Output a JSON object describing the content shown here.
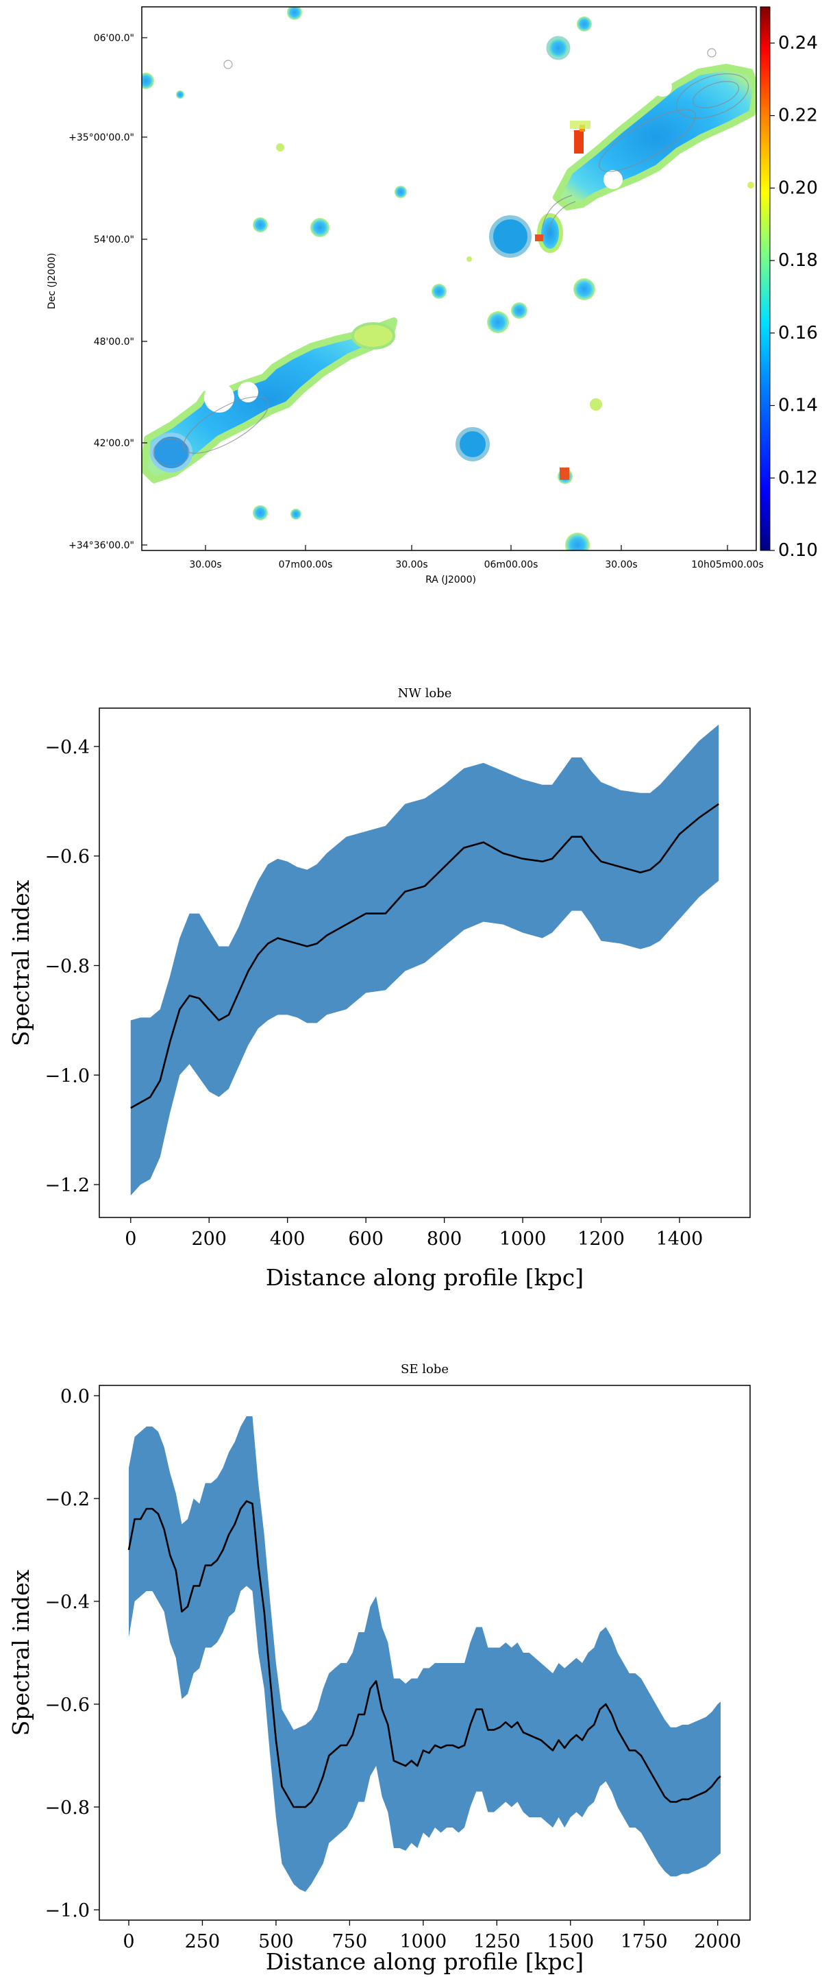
{
  "chart_data": [
    {
      "type": "heatmap",
      "xlabel": "RA (J2000)",
      "ylabel": "Dec (J2000)",
      "x_ticks": [
        "30.00s",
        "07m00.00s",
        "30.00s",
        "06m00.00s",
        "30.00s",
        "10h05m00.00s"
      ],
      "y_ticks": [
        "06'00.0\"",
        "+35°00'00.0\"",
        "54'00.0\"",
        "48'00.0\"",
        "42'00.0\"",
        "+34°36'00.0\""
      ],
      "colorbar": {
        "ticks": [
          "0.24",
          "0.22",
          "0.20",
          "0.18",
          "0.16",
          "0.14",
          "0.12",
          "0.10"
        ],
        "range": [
          0.1,
          0.25
        ],
        "colors": [
          "#00007f",
          "#0000ff",
          "#0080ff",
          "#00e0ff",
          "#80ff80",
          "#ffff00",
          "#ff8000",
          "#ff0000",
          "#7f0000"
        ]
      }
    },
    {
      "type": "area",
      "title": "NW lobe",
      "xlabel": "Distance along profile [kpc]",
      "ylabel": "Spectral index",
      "xlim": [
        -80,
        1580
      ],
      "ylim": [
        -1.26,
        -0.33
      ],
      "x_ticks": [
        "0",
        "200",
        "400",
        "600",
        "800",
        "1000",
        "1200",
        "1400"
      ],
      "y_ticks": [
        "−0.4",
        "−0.6",
        "−0.8",
        "−1.0",
        "−1.2"
      ],
      "series": [
        {
          "name": "mean",
          "x": [
            0,
            25,
            50,
            75,
            100,
            125,
            150,
            175,
            200,
            225,
            250,
            275,
            300,
            325,
            350,
            375,
            400,
            425,
            450,
            475,
            500,
            550,
            600,
            650,
            700,
            750,
            800,
            850,
            900,
            950,
            1000,
            1050,
            1075,
            1100,
            1125,
            1150,
            1175,
            1200,
            1250,
            1300,
            1325,
            1350,
            1400,
            1450,
            1500
          ],
          "y": [
            -1.06,
            -1.05,
            -1.04,
            -1.01,
            -0.94,
            -0.88,
            -0.855,
            -0.86,
            -0.88,
            -0.9,
            -0.89,
            -0.85,
            -0.81,
            -0.78,
            -0.76,
            -0.75,
            -0.755,
            -0.76,
            -0.765,
            -0.76,
            -0.745,
            -0.725,
            -0.705,
            -0.705,
            -0.665,
            -0.655,
            -0.62,
            -0.585,
            -0.575,
            -0.595,
            -0.605,
            -0.61,
            -0.605,
            -0.585,
            -0.565,
            -0.565,
            -0.59,
            -0.61,
            -0.62,
            -0.63,
            -0.625,
            -0.61,
            -0.56,
            -0.53,
            -0.505
          ]
        },
        {
          "name": "upper",
          "x": [
            0,
            25,
            50,
            75,
            100,
            125,
            150,
            175,
            200,
            225,
            250,
            275,
            300,
            325,
            350,
            375,
            400,
            425,
            450,
            475,
            500,
            550,
            600,
            650,
            700,
            750,
            800,
            850,
            900,
            950,
            1000,
            1050,
            1075,
            1100,
            1125,
            1150,
            1175,
            1200,
            1250,
            1300,
            1325,
            1350,
            1400,
            1450,
            1500
          ],
          "y": [
            -0.9,
            -0.895,
            -0.895,
            -0.88,
            -0.82,
            -0.75,
            -0.705,
            -0.705,
            -0.735,
            -0.765,
            -0.765,
            -0.73,
            -0.685,
            -0.645,
            -0.615,
            -0.605,
            -0.61,
            -0.62,
            -0.625,
            -0.615,
            -0.595,
            -0.565,
            -0.555,
            -0.545,
            -0.505,
            -0.495,
            -0.47,
            -0.44,
            -0.43,
            -0.445,
            -0.46,
            -0.47,
            -0.47,
            -0.445,
            -0.42,
            -0.42,
            -0.445,
            -0.465,
            -0.48,
            -0.485,
            -0.485,
            -0.47,
            -0.43,
            -0.39,
            -0.36
          ]
        },
        {
          "name": "lower",
          "x": [
            0,
            25,
            50,
            75,
            100,
            125,
            150,
            175,
            200,
            225,
            250,
            275,
            300,
            325,
            350,
            375,
            400,
            425,
            450,
            475,
            500,
            550,
            600,
            650,
            700,
            750,
            800,
            850,
            900,
            950,
            1000,
            1050,
            1075,
            1100,
            1125,
            1150,
            1175,
            1200,
            1250,
            1300,
            1325,
            1350,
            1400,
            1450,
            1500
          ],
          "y": [
            -1.22,
            -1.2,
            -1.19,
            -1.15,
            -1.07,
            -1.0,
            -0.98,
            -1.005,
            -1.03,
            -1.04,
            -1.025,
            -0.985,
            -0.945,
            -0.915,
            -0.9,
            -0.89,
            -0.89,
            -0.895,
            -0.905,
            -0.905,
            -0.89,
            -0.88,
            -0.85,
            -0.845,
            -0.81,
            -0.795,
            -0.765,
            -0.735,
            -0.72,
            -0.725,
            -0.74,
            -0.75,
            -0.74,
            -0.72,
            -0.7,
            -0.7,
            -0.725,
            -0.755,
            -0.76,
            -0.77,
            -0.765,
            -0.755,
            -0.715,
            -0.675,
            -0.645
          ]
        }
      ]
    },
    {
      "type": "area",
      "title": "SE lobe",
      "xlabel": "Distance along profile [kpc]",
      "ylabel": "Spectral index",
      "xlim": [
        -100,
        2110
      ],
      "ylim": [
        -1.02,
        0.02
      ],
      "x_ticks": [
        "0",
        "250",
        "500",
        "750",
        "1000",
        "1250",
        "1500",
        "1750",
        "2000"
      ],
      "y_ticks": [
        "0.0",
        "−0.2",
        "−0.4",
        "−0.6",
        "−0.8",
        "−1.0"
      ],
      "series": [
        {
          "name": "mean",
          "x": [
            0,
            20,
            40,
            60,
            80,
            100,
            120,
            140,
            160,
            180,
            200,
            220,
            240,
            260,
            280,
            300,
            320,
            340,
            360,
            380,
            400,
            420,
            440,
            460,
            480,
            500,
            520,
            540,
            560,
            580,
            600,
            620,
            640,
            660,
            680,
            700,
            720,
            740,
            760,
            780,
            800,
            820,
            840,
            860,
            880,
            900,
            920,
            940,
            960,
            980,
            1000,
            1020,
            1040,
            1060,
            1080,
            1100,
            1120,
            1140,
            1160,
            1180,
            1200,
            1220,
            1240,
            1260,
            1280,
            1300,
            1320,
            1340,
            1360,
            1380,
            1400,
            1420,
            1440,
            1460,
            1480,
            1500,
            1520,
            1540,
            1560,
            1580,
            1600,
            1620,
            1640,
            1660,
            1680,
            1700,
            1720,
            1740,
            1760,
            1780,
            1800,
            1820,
            1840,
            1860,
            1880,
            1900,
            1920,
            1940,
            1960,
            1980,
            2000,
            2010
          ],
          "y": [
            -0.3,
            -0.24,
            -0.24,
            -0.22,
            -0.22,
            -0.23,
            -0.26,
            -0.31,
            -0.34,
            -0.42,
            -0.41,
            -0.37,
            -0.37,
            -0.33,
            -0.33,
            -0.32,
            -0.3,
            -0.27,
            -0.25,
            -0.22,
            -0.205,
            -0.21,
            -0.33,
            -0.42,
            -0.55,
            -0.67,
            -0.76,
            -0.78,
            -0.8,
            -0.8,
            -0.8,
            -0.79,
            -0.77,
            -0.74,
            -0.7,
            -0.69,
            -0.68,
            -0.68,
            -0.66,
            -0.62,
            -0.62,
            -0.57,
            -0.555,
            -0.61,
            -0.64,
            -0.71,
            -0.715,
            -0.72,
            -0.71,
            -0.72,
            -0.69,
            -0.695,
            -0.68,
            -0.685,
            -0.68,
            -0.68,
            -0.685,
            -0.68,
            -0.64,
            -0.61,
            -0.61,
            -0.65,
            -0.65,
            -0.645,
            -0.635,
            -0.645,
            -0.635,
            -0.655,
            -0.66,
            -0.665,
            -0.67,
            -0.68,
            -0.69,
            -0.67,
            -0.685,
            -0.67,
            -0.66,
            -0.67,
            -0.65,
            -0.64,
            -0.61,
            -0.6,
            -0.62,
            -0.65,
            -0.67,
            -0.69,
            -0.69,
            -0.7,
            -0.72,
            -0.74,
            -0.76,
            -0.78,
            -0.79,
            -0.79,
            -0.785,
            -0.785,
            -0.78,
            -0.775,
            -0.77,
            -0.76,
            -0.745,
            -0.74
          ]
        },
        {
          "name": "upper",
          "x": [
            0,
            20,
            40,
            60,
            80,
            100,
            120,
            140,
            160,
            180,
            200,
            220,
            240,
            260,
            280,
            300,
            320,
            340,
            360,
            380,
            400,
            420,
            440,
            460,
            480,
            500,
            520,
            540,
            560,
            580,
            600,
            620,
            640,
            660,
            680,
            700,
            720,
            740,
            760,
            780,
            800,
            820,
            840,
            860,
            880,
            900,
            920,
            940,
            960,
            980,
            1000,
            1020,
            1040,
            1060,
            1080,
            1100,
            1120,
            1140,
            1160,
            1180,
            1200,
            1220,
            1240,
            1260,
            1280,
            1300,
            1320,
            1340,
            1360,
            1380,
            1400,
            1420,
            1440,
            1460,
            1480,
            1500,
            1520,
            1540,
            1560,
            1580,
            1600,
            1620,
            1640,
            1660,
            1680,
            1700,
            1720,
            1740,
            1760,
            1780,
            1800,
            1820,
            1840,
            1860,
            1880,
            1900,
            1920,
            1940,
            1960,
            1980,
            2000,
            2010
          ],
          "y": [
            -0.14,
            -0.08,
            -0.07,
            -0.06,
            -0.06,
            -0.07,
            -0.1,
            -0.15,
            -0.19,
            -0.25,
            -0.24,
            -0.2,
            -0.21,
            -0.17,
            -0.17,
            -0.16,
            -0.14,
            -0.11,
            -0.09,
            -0.06,
            -0.04,
            -0.04,
            -0.17,
            -0.27,
            -0.4,
            -0.52,
            -0.61,
            -0.63,
            -0.65,
            -0.645,
            -0.64,
            -0.63,
            -0.61,
            -0.57,
            -0.54,
            -0.53,
            -0.52,
            -0.52,
            -0.5,
            -0.46,
            -0.46,
            -0.41,
            -0.39,
            -0.45,
            -0.48,
            -0.55,
            -0.55,
            -0.56,
            -0.55,
            -0.55,
            -0.53,
            -0.53,
            -0.52,
            -0.52,
            -0.52,
            -0.52,
            -0.52,
            -0.52,
            -0.48,
            -0.45,
            -0.45,
            -0.49,
            -0.49,
            -0.49,
            -0.48,
            -0.49,
            -0.48,
            -0.5,
            -0.5,
            -0.51,
            -0.52,
            -0.53,
            -0.54,
            -0.52,
            -0.53,
            -0.52,
            -0.51,
            -0.52,
            -0.5,
            -0.49,
            -0.46,
            -0.45,
            -0.47,
            -0.5,
            -0.52,
            -0.54,
            -0.54,
            -0.55,
            -0.57,
            -0.59,
            -0.61,
            -0.63,
            -0.645,
            -0.645,
            -0.64,
            -0.64,
            -0.635,
            -0.63,
            -0.625,
            -0.615,
            -0.6,
            -0.595
          ]
        },
        {
          "name": "lower",
          "x": [
            0,
            20,
            40,
            60,
            80,
            100,
            120,
            140,
            160,
            180,
            200,
            220,
            240,
            260,
            280,
            300,
            320,
            340,
            360,
            380,
            400,
            420,
            440,
            460,
            480,
            500,
            520,
            540,
            560,
            580,
            600,
            620,
            640,
            660,
            680,
            700,
            720,
            740,
            760,
            780,
            800,
            820,
            840,
            860,
            880,
            900,
            920,
            940,
            960,
            980,
            1000,
            1020,
            1040,
            1060,
            1080,
            1100,
            1120,
            1140,
            1160,
            1180,
            1200,
            1220,
            1240,
            1260,
            1280,
            1300,
            1320,
            1340,
            1360,
            1380,
            1400,
            1420,
            1440,
            1460,
            1480,
            1500,
            1520,
            1540,
            1560,
            1580,
            1600,
            1620,
            1640,
            1660,
            1680,
            1700,
            1720,
            1740,
            1760,
            1780,
            1800,
            1820,
            1840,
            1860,
            1880,
            1900,
            1920,
            1940,
            1960,
            1980,
            2000,
            2010
          ],
          "y": [
            -0.47,
            -0.4,
            -0.39,
            -0.38,
            -0.38,
            -0.4,
            -0.42,
            -0.48,
            -0.51,
            -0.59,
            -0.58,
            -0.54,
            -0.53,
            -0.49,
            -0.49,
            -0.48,
            -0.46,
            -0.43,
            -0.42,
            -0.38,
            -0.37,
            -0.38,
            -0.5,
            -0.57,
            -0.7,
            -0.82,
            -0.91,
            -0.93,
            -0.95,
            -0.96,
            -0.965,
            -0.95,
            -0.93,
            -0.91,
            -0.87,
            -0.86,
            -0.85,
            -0.84,
            -0.82,
            -0.79,
            -0.79,
            -0.74,
            -0.72,
            -0.78,
            -0.81,
            -0.88,
            -0.88,
            -0.885,
            -0.87,
            -0.88,
            -0.85,
            -0.86,
            -0.84,
            -0.85,
            -0.84,
            -0.84,
            -0.85,
            -0.84,
            -0.8,
            -0.77,
            -0.77,
            -0.81,
            -0.81,
            -0.8,
            -0.79,
            -0.8,
            -0.79,
            -0.81,
            -0.82,
            -0.82,
            -0.82,
            -0.83,
            -0.84,
            -0.82,
            -0.84,
            -0.82,
            -0.81,
            -0.82,
            -0.8,
            -0.79,
            -0.76,
            -0.75,
            -0.77,
            -0.8,
            -0.82,
            -0.84,
            -0.84,
            -0.85,
            -0.87,
            -0.89,
            -0.91,
            -0.925,
            -0.935,
            -0.935,
            -0.93,
            -0.93,
            -0.925,
            -0.92,
            -0.915,
            -0.905,
            -0.895,
            -0.89
          ]
        }
      ]
    }
  ]
}
